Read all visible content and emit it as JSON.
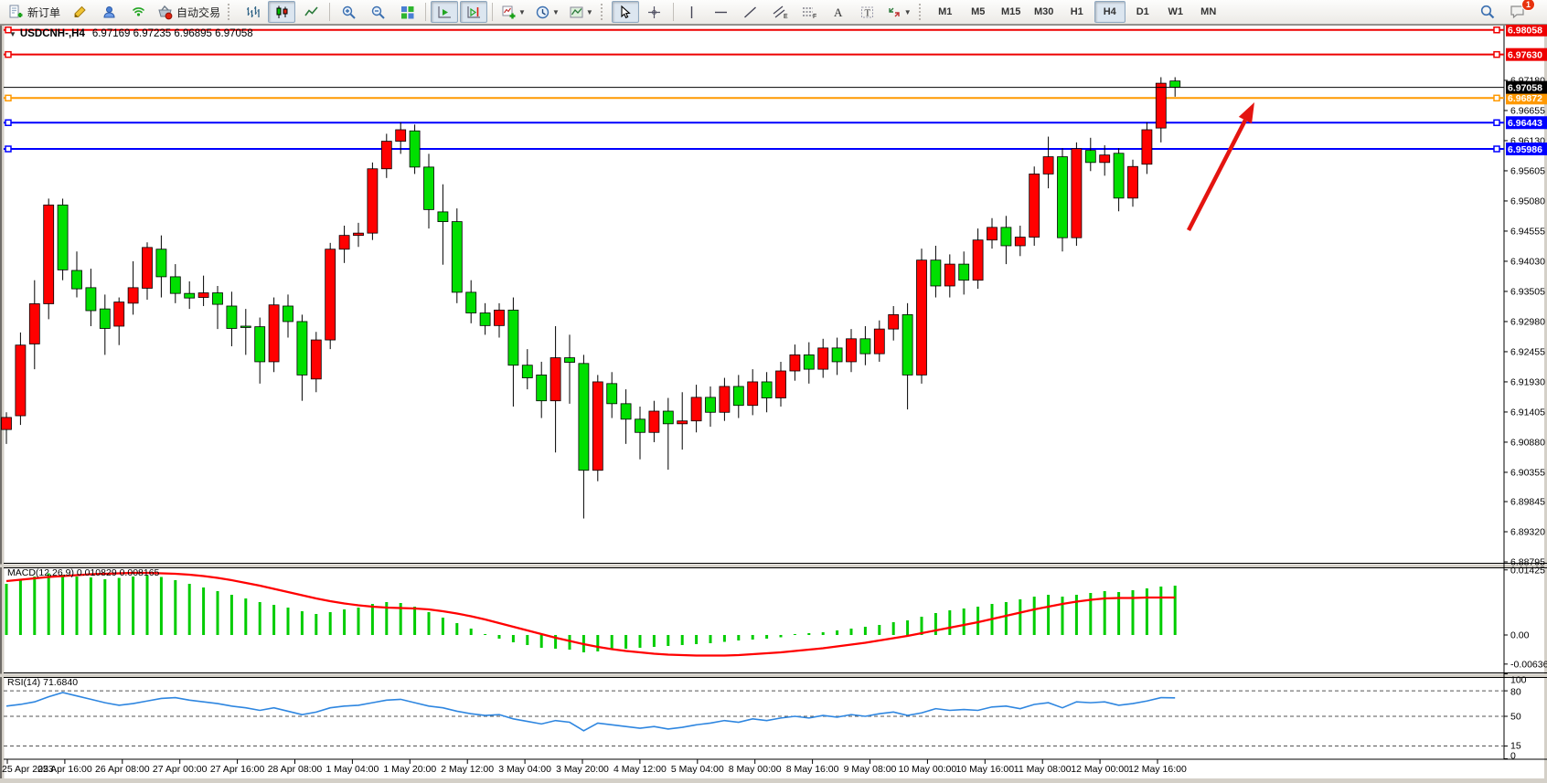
{
  "toolbar": {
    "buttons": {
      "new_order": "新订单",
      "auto_trading": "自动交易"
    },
    "timeframes": [
      "M1",
      "M5",
      "M15",
      "M30",
      "H1",
      "H4",
      "D1",
      "W1",
      "MN"
    ],
    "active_timeframe": "H4",
    "notification_badge": "1"
  },
  "chart": {
    "title_marker": "▼",
    "title_symbol": "USDCNH-,H4",
    "title_ohlc": "6.97169 6.97235 6.96895 6.97058",
    "current_price_label": "6.97058",
    "price_ticks": [
      "6.97180",
      "6.96655",
      "6.96130",
      "6.95605",
      "6.95080",
      "6.94555",
      "6.94030",
      "6.93505",
      "6.92980",
      "6.92455",
      "6.91930",
      "6.91405",
      "6.90880",
      "6.90355",
      "6.89845",
      "6.89320",
      "6.88795"
    ],
    "date_labels": [
      "25 Apr 2023",
      "25 Apr 16:00",
      "26 Apr 08:00",
      "27 Apr 00:00",
      "27 Apr 16:00",
      "28 Apr 08:00",
      "1 May 04:00",
      "1 May 20:00",
      "2 May 12:00",
      "3 May 04:00",
      "3 May 20:00",
      "4 May 12:00",
      "5 May 04:00",
      "8 May 00:00",
      "8 May 16:00",
      "9 May 08:00",
      "10 May 00:00",
      "10 May 16:00",
      "11 May 08:00",
      "12 May 00:00",
      "12 May 16:00"
    ],
    "hlines": [
      {
        "label": "6.98058",
        "price": 6.98058,
        "color": "#ee0000"
      },
      {
        "label": "6.97630",
        "price": 6.9763,
        "color": "#ee0000"
      },
      {
        "label": "6.96872",
        "price": 6.96872,
        "color": "#ff9900"
      },
      {
        "label": "6.96443",
        "price": 6.96443,
        "color": "#0000ff"
      },
      {
        "label": "6.95986",
        "price": 6.95986,
        "color": "#0000ff"
      }
    ],
    "colors": {
      "bull": "#ff0000",
      "bear": "#00df00",
      "wick": "#000000",
      "current_price_line": "#000000",
      "macd_hist": "#00cc00",
      "macd_signal": "#ff0000",
      "rsi_line": "#2e86e0",
      "arrow": "#e41410"
    }
  },
  "chart_data": {
    "type": "candlestick",
    "symbol": "USDCNH-",
    "period": "H4",
    "convention": "red=bullish, green=bearish (Chinese color scheme)",
    "ohlc_current": {
      "open": 6.97169,
      "high": 6.97235,
      "low": 6.96895,
      "close": 6.97058
    },
    "candles": [
      [
        6.911,
        6.914,
        6.9085,
        6.9131
      ],
      [
        6.9134,
        6.9279,
        6.9118,
        6.9257
      ],
      [
        6.9259,
        6.937,
        6.9215,
        6.9329
      ],
      [
        6.9329,
        6.9512,
        6.9302,
        6.9501
      ],
      [
        6.9501,
        6.9512,
        6.937,
        6.9388
      ],
      [
        6.9387,
        6.942,
        6.934,
        6.9355
      ],
      [
        6.9357,
        6.939,
        6.929,
        6.9317
      ],
      [
        6.932,
        6.9345,
        6.924,
        6.9286
      ],
      [
        6.929,
        6.934,
        6.9257,
        6.9332
      ],
      [
        6.933,
        6.9403,
        6.931,
        6.9357
      ],
      [
        6.9356,
        6.9436,
        6.9336,
        6.9427
      ],
      [
        6.9424,
        6.9448,
        6.934,
        6.9376
      ],
      [
        6.9376,
        6.9398,
        6.933,
        6.9347
      ],
      [
        6.9347,
        6.9368,
        6.932,
        6.9339
      ],
      [
        6.934,
        6.9378,
        6.9325,
        6.9348
      ],
      [
        6.9348,
        6.936,
        6.9285,
        6.9328
      ],
      [
        6.9325,
        6.935,
        6.9255,
        6.9286
      ],
      [
        6.929,
        6.932,
        6.924,
        6.9289
      ],
      [
        6.9289,
        6.9305,
        6.919,
        6.9228
      ],
      [
        6.9228,
        6.934,
        6.921,
        6.9327
      ],
      [
        6.9325,
        6.9345,
        6.927,
        6.9298
      ],
      [
        6.9298,
        6.931,
        6.916,
        6.9205
      ],
      [
        6.9198,
        6.928,
        6.9175,
        6.9266
      ],
      [
        6.9266,
        6.9435,
        6.925,
        6.9424
      ],
      [
        6.9424,
        6.9465,
        6.94,
        6.9448
      ],
      [
        6.9448,
        6.947,
        6.9428,
        6.9452
      ],
      [
        6.9452,
        6.9575,
        6.944,
        6.9564
      ],
      [
        6.9564,
        6.9625,
        6.9548,
        6.9612
      ],
      [
        6.9612,
        6.9645,
        6.959,
        6.9632
      ],
      [
        6.963,
        6.9641,
        6.9555,
        6.9567
      ],
      [
        6.9567,
        6.959,
        6.946,
        6.9493
      ],
      [
        6.9489,
        6.9537,
        6.9397,
        6.9472
      ],
      [
        6.9472,
        6.9495,
        6.933,
        6.9349
      ],
      [
        6.9349,
        6.937,
        6.9295,
        6.9313
      ],
      [
        6.9313,
        6.933,
        6.9275,
        6.9291
      ],
      [
        6.9291,
        6.933,
        6.927,
        6.9318
      ],
      [
        6.9318,
        6.934,
        6.915,
        6.9222
      ],
      [
        6.9222,
        6.925,
        6.918,
        6.92
      ],
      [
        6.9205,
        6.9228,
        6.913,
        6.916
      ],
      [
        6.916,
        6.929,
        6.907,
        6.9235
      ],
      [
        6.9235,
        6.9275,
        6.9155,
        6.9227
      ],
      [
        6.9225,
        6.924,
        6.8955,
        6.9039
      ],
      [
        6.9039,
        6.9205,
        6.902,
        6.9193
      ],
      [
        6.919,
        6.921,
        6.913,
        6.9155
      ],
      [
        6.9155,
        6.918,
        6.9085,
        6.9128
      ],
      [
        6.9128,
        6.915,
        6.9058,
        6.9105
      ],
      [
        6.9105,
        6.916,
        6.9088,
        6.9142
      ],
      [
        6.9142,
        6.9165,
        6.904,
        6.912
      ],
      [
        6.912,
        6.9175,
        6.9075,
        6.9125
      ],
      [
        6.9125,
        6.9188,
        6.9105,
        6.9166
      ],
      [
        6.9166,
        6.9185,
        6.9115,
        6.914
      ],
      [
        6.914,
        6.92,
        6.9125,
        6.9185
      ],
      [
        6.9185,
        6.9205,
        6.913,
        6.9152
      ],
      [
        6.9152,
        6.9215,
        6.9135,
        6.9193
      ],
      [
        6.9193,
        6.921,
        6.914,
        6.9165
      ],
      [
        6.9165,
        6.9228,
        6.915,
        6.9212
      ],
      [
        6.9212,
        6.9258,
        6.9195,
        6.924
      ],
      [
        6.924,
        6.9262,
        6.919,
        6.9215
      ],
      [
        6.9215,
        6.9268,
        6.92,
        6.9252
      ],
      [
        6.9252,
        6.927,
        6.9205,
        6.9228
      ],
      [
        6.9228,
        6.9285,
        6.921,
        6.9268
      ],
      [
        6.9268,
        6.929,
        6.9222,
        6.9242
      ],
      [
        6.9242,
        6.93,
        6.9228,
        6.9285
      ],
      [
        6.9285,
        6.9325,
        6.9265,
        6.931
      ],
      [
        6.931,
        6.933,
        6.9145,
        6.9205
      ],
      [
        6.9205,
        6.9425,
        6.919,
        6.9405
      ],
      [
        6.9405,
        6.943,
        6.934,
        6.936
      ],
      [
        6.936,
        6.9415,
        6.934,
        6.9398
      ],
      [
        6.9398,
        6.942,
        6.9345,
        6.937
      ],
      [
        6.937,
        6.946,
        6.9355,
        6.944
      ],
      [
        6.944,
        6.9478,
        6.9425,
        6.9462
      ],
      [
        6.9462,
        6.9482,
        6.9398,
        6.943
      ],
      [
        6.943,
        6.9465,
        6.9412,
        6.9445
      ],
      [
        6.9445,
        6.9568,
        6.943,
        6.9555
      ],
      [
        6.9555,
        6.962,
        6.953,
        6.9585
      ],
      [
        6.9585,
        6.96,
        6.942,
        6.9444
      ],
      [
        6.9444,
        6.961,
        6.943,
        6.9599
      ],
      [
        6.9596,
        6.9618,
        6.956,
        6.9575
      ],
      [
        6.9575,
        6.9605,
        6.9552,
        6.9588
      ],
      [
        6.9591,
        6.96,
        6.949,
        6.9513
      ],
      [
        6.9513,
        6.958,
        6.9498,
        6.9568
      ],
      [
        6.9572,
        6.9645,
        6.9555,
        6.9632
      ],
      [
        6.9635,
        6.97235,
        6.961,
        6.9713
      ],
      [
        6.97169,
        6.97235,
        6.96895,
        6.97058
      ]
    ],
    "indicators": [
      {
        "type": "MACD",
        "label": "MACD(12,26,9)",
        "params": [
          12,
          26,
          9
        ],
        "current_macd": "0.010829",
        "current_signal": "0.008165",
        "scale_ticks": [
          "0.01425",
          "0.00",
          "-0.006367"
        ],
        "histogram": [
          0.0112,
          0.012,
          0.0128,
          0.0135,
          0.0132,
          0.0128,
          0.0126,
          0.0122,
          0.0125,
          0.0128,
          0.013,
          0.0127,
          0.012,
          0.0112,
          0.0104,
          0.0096,
          0.0088,
          0.008,
          0.0072,
          0.0066,
          0.006,
          0.0052,
          0.0046,
          0.005,
          0.0056,
          0.006,
          0.0068,
          0.0072,
          0.007,
          0.0062,
          0.005,
          0.0038,
          0.0026,
          0.0014,
          0.0002,
          -0.0008,
          -0.0016,
          -0.0022,
          -0.0028,
          -0.003,
          -0.0032,
          -0.0038,
          -0.0036,
          -0.0032,
          -0.003,
          -0.0028,
          -0.0026,
          -0.0024,
          -0.0022,
          -0.002,
          -0.0018,
          -0.0015,
          -0.0012,
          -0.001,
          -0.0008,
          -0.0005,
          0.0002,
          0.0004,
          0.0006,
          0.001,
          0.0014,
          0.0018,
          0.0022,
          0.0028,
          0.0032,
          0.004,
          0.0048,
          0.0054,
          0.0058,
          0.0062,
          0.0068,
          0.0072,
          0.0078,
          0.0084,
          0.0088,
          0.0084,
          0.0088,
          0.0092,
          0.0096,
          0.0094,
          0.0098,
          0.0102,
          0.0106,
          0.0108
        ],
        "signal": [
          0.0118,
          0.0121,
          0.0124,
          0.0127,
          0.0129,
          0.0131,
          0.0133,
          0.0134,
          0.0135,
          0.0136,
          0.0136,
          0.0135,
          0.0134,
          0.0132,
          0.0129,
          0.0125,
          0.012,
          0.0114,
          0.0108,
          0.0101,
          0.0094,
          0.0087,
          0.008,
          0.0074,
          0.0069,
          0.0065,
          0.0062,
          0.006,
          0.0059,
          0.0058,
          0.0056,
          0.0052,
          0.0047,
          0.0041,
          0.0034,
          0.0026,
          0.0018,
          0.001,
          0.0002,
          -0.0006,
          -0.0013,
          -0.002,
          -0.0026,
          -0.0031,
          -0.0035,
          -0.0038,
          -0.0041,
          -0.0043,
          -0.0044,
          -0.0045,
          -0.0045,
          -0.0045,
          -0.0044,
          -0.0042,
          -0.004,
          -0.0038,
          -0.0035,
          -0.0032,
          -0.0029,
          -0.0025,
          -0.0021,
          -0.0017,
          -0.0012,
          -0.0007,
          -0.0002,
          0.0004,
          0.001,
          0.0016,
          0.0022,
          0.0028,
          0.0035,
          0.0042,
          0.0049,
          0.0056,
          0.0062,
          0.0068,
          0.0073,
          0.0077,
          0.008,
          0.0081,
          0.0081,
          0.0082,
          0.0082,
          0.0082
        ]
      },
      {
        "type": "RSI",
        "label": "RSI(14)",
        "period": 14,
        "current": "71.6840",
        "levels": [
          80,
          50,
          15
        ],
        "scale_ticks": [
          "100",
          "80",
          "50",
          "15",
          "0"
        ],
        "values": [
          62,
          64,
          67,
          73,
          78,
          74,
          70,
          66,
          63,
          65,
          68,
          71,
          72,
          69,
          67,
          65,
          62,
          60,
          57,
          60,
          56,
          52,
          55,
          60,
          62,
          63,
          66,
          69,
          70,
          66,
          62,
          60,
          56,
          53,
          51,
          52,
          47,
          44,
          41,
          45,
          43,
          33,
          42,
          40,
          38,
          36,
          38,
          35,
          37,
          40,
          42,
          45,
          43,
          47,
          45,
          48,
          50,
          48,
          51,
          49,
          52,
          50,
          53,
          55,
          51,
          54,
          59,
          57,
          58,
          57,
          61,
          62,
          59,
          64,
          66,
          60,
          67,
          66,
          67,
          63,
          65,
          68,
          72,
          71.68
        ]
      }
    ]
  },
  "annotation": {
    "arrow": {
      "from": [
        1300,
        252
      ],
      "to": [
        1372,
        112
      ]
    }
  }
}
